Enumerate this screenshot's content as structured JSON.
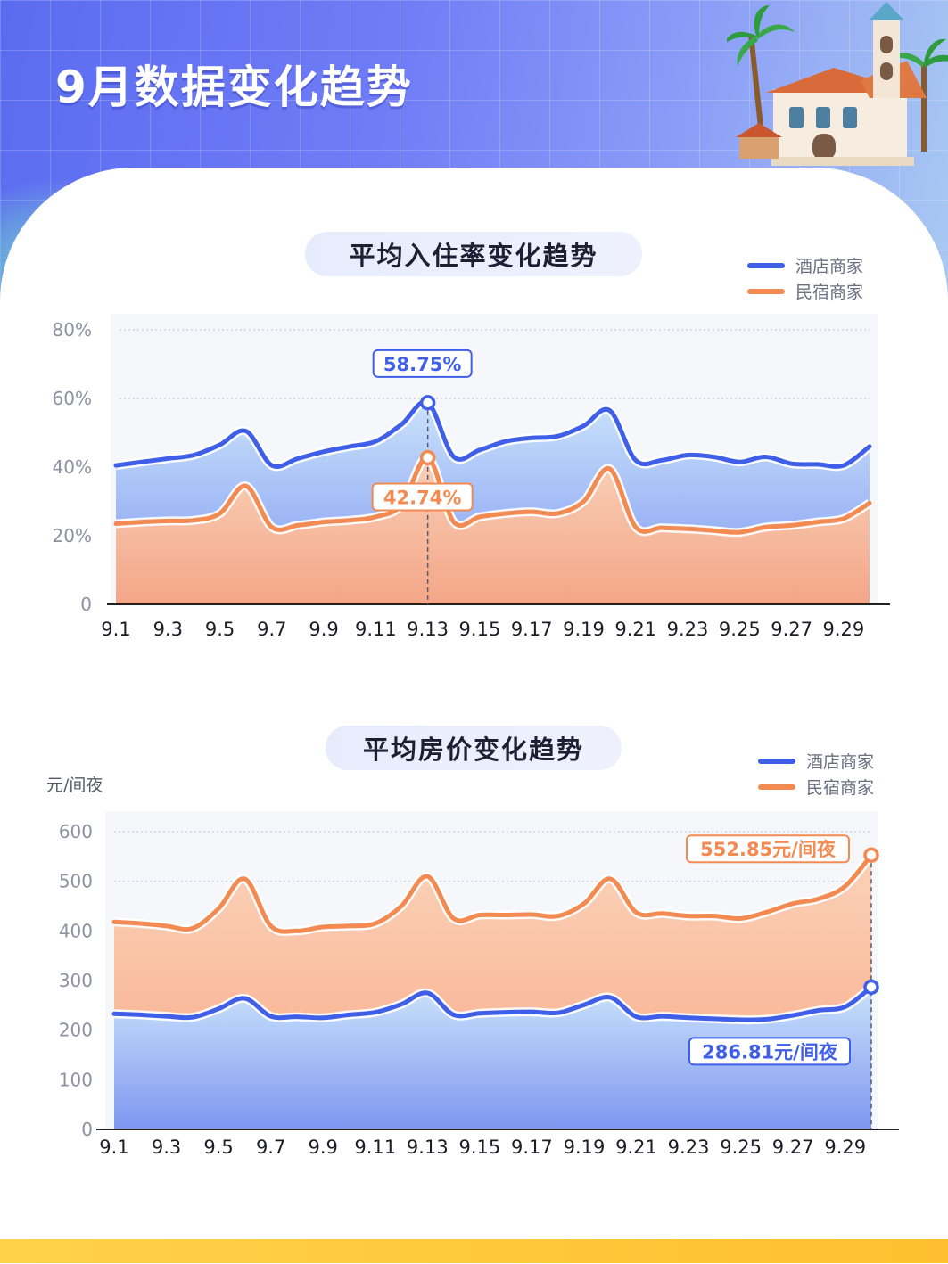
{
  "page": {
    "title": "9月数据变化趋势"
  },
  "colors": {
    "hotel": "#3f5fe8",
    "homestay": "#f28a52"
  },
  "chart_data": [
    {
      "type": "area",
      "title": "平均入住率变化趋势",
      "ylabel": "",
      "xlabel": "",
      "ylim": [
        0,
        80
      ],
      "yticks": [
        {
          "value": 0,
          "label": "0"
        },
        {
          "value": 20,
          "label": "20%"
        },
        {
          "value": 40,
          "label": "40%"
        },
        {
          "value": 60,
          "label": "60%"
        },
        {
          "value": 80,
          "label": "80%"
        }
      ],
      "x": [
        "9.1",
        "9.2",
        "9.3",
        "9.4",
        "9.5",
        "9.6",
        "9.7",
        "9.8",
        "9.9",
        "9.10",
        "9.11",
        "9.12",
        "9.13",
        "9.14",
        "9.15",
        "9.16",
        "9.17",
        "9.18",
        "9.19",
        "9.20",
        "9.21",
        "9.22",
        "9.23",
        "9.24",
        "9.25",
        "9.26",
        "9.27",
        "9.28",
        "9.29",
        "9.30"
      ],
      "xtick_labels": [
        "9.1",
        "9.3",
        "9.5",
        "9.7",
        "9.9",
        "9.11",
        "9.13",
        "9.15",
        "9.17",
        "9.19",
        "9.21",
        "9.23",
        "9.25",
        "9.27",
        "9.29"
      ],
      "legend_position": "top-right",
      "grid": true,
      "series": [
        {
          "name": "酒店商家",
          "color": "#3f5fe8",
          "values": [
            40.5,
            41.5,
            42.5,
            43.5,
            46.5,
            50.5,
            40.5,
            42.5,
            44.5,
            46,
            47.5,
            52.5,
            58.75,
            43,
            45,
            47.5,
            48.5,
            49,
            52,
            56.5,
            42,
            42,
            43.5,
            43,
            41.5,
            43,
            41,
            40.8,
            40.5,
            46
          ]
        },
        {
          "name": "民宿商家",
          "color": "#f28a52",
          "values": [
            23.5,
            24,
            24.3,
            24.5,
            26.5,
            34.5,
            22.5,
            23,
            24,
            24.5,
            25.5,
            29,
            42.74,
            24,
            25.5,
            26.5,
            27,
            26.5,
            30,
            39.5,
            22.5,
            22.3,
            22,
            21.5,
            21,
            22.5,
            23,
            24,
            25,
            29.5
          ]
        }
      ],
      "annotations": [
        {
          "series": 0,
          "index": 12,
          "label": "58.75%"
        },
        {
          "series": 1,
          "index": 12,
          "label": "42.74%"
        }
      ]
    },
    {
      "type": "area",
      "title": "平均房价变化趋势",
      "ylabel": "元/间夜",
      "xlabel": "",
      "ylim": [
        0,
        600
      ],
      "yticks": [
        {
          "value": 0,
          "label": "0"
        },
        {
          "value": 100,
          "label": "100"
        },
        {
          "value": 200,
          "label": "200"
        },
        {
          "value": 300,
          "label": "300"
        },
        {
          "value": 400,
          "label": "400"
        },
        {
          "value": 500,
          "label": "500"
        },
        {
          "value": 600,
          "label": "600"
        }
      ],
      "x": [
        "9.1",
        "9.2",
        "9.3",
        "9.4",
        "9.5",
        "9.6",
        "9.7",
        "9.8",
        "9.9",
        "9.10",
        "9.11",
        "9.12",
        "9.13",
        "9.14",
        "9.15",
        "9.16",
        "9.17",
        "9.18",
        "9.19",
        "9.20",
        "9.21",
        "9.22",
        "9.23",
        "9.24",
        "9.25",
        "9.26",
        "9.27",
        "9.28",
        "9.29",
        "9.30"
      ],
      "xtick_labels": [
        "9.1",
        "9.3",
        "9.5",
        "9.7",
        "9.9",
        "9.11",
        "9.13",
        "9.15",
        "9.17",
        "9.19",
        "9.21",
        "9.23",
        "9.25",
        "9.27",
        "9.29"
      ],
      "legend_position": "top-right",
      "grid": true,
      "series": [
        {
          "name": "酒店商家",
          "color": "#3f5fe8",
          "values": [
            233,
            231,
            228,
            226,
            243,
            264,
            228,
            227,
            225,
            231,
            236,
            252,
            275,
            231,
            234,
            236,
            237,
            235,
            251,
            266,
            227,
            228,
            225,
            223,
            221,
            222,
            230,
            240,
            247,
            286.81
          ]
        },
        {
          "name": "民宿商家",
          "color": "#f28a52",
          "values": [
            418,
            415,
            410,
            405,
            445,
            505,
            410,
            400,
            408,
            410,
            415,
            450,
            510,
            425,
            432,
            432,
            433,
            430,
            455,
            505,
            437,
            435,
            430,
            430,
            425,
            438,
            455,
            465,
            490,
            552.85
          ]
        }
      ],
      "annotations": [
        {
          "series": 1,
          "index": 29,
          "label": "552.85元/间夜"
        },
        {
          "series": 0,
          "index": 29,
          "label": "286.81元/间夜"
        }
      ]
    }
  ]
}
